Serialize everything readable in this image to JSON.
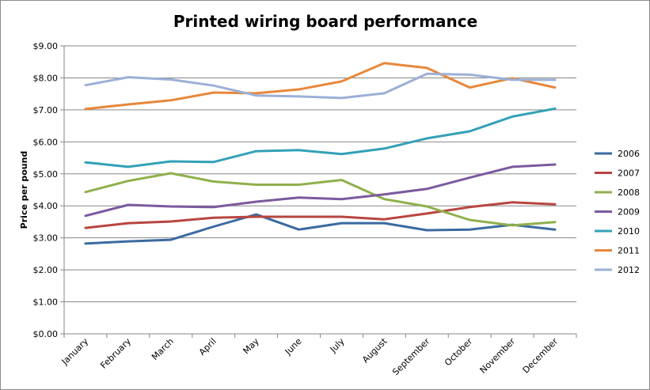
{
  "chart_data": {
    "type": "line",
    "title": "Printed wiring board performance",
    "ylabel": "Price per pound",
    "xlabel": "",
    "categories": [
      "January",
      "February",
      "March",
      "April",
      "May",
      "June",
      "July",
      "August",
      "September",
      "October",
      "November",
      "December"
    ],
    "y_ticks": [
      "$0.00",
      "$1.00",
      "$2.00",
      "$3.00",
      "$4.00",
      "$5.00",
      "$6.00",
      "$7.00",
      "$8.00",
      "$9.00"
    ],
    "ylim": [
      0,
      9
    ],
    "grid": true,
    "legend_position": "right",
    "series": [
      {
        "name": "2006",
        "color": "#3b6aa0",
        "values": [
          2.82,
          2.89,
          2.94,
          3.35,
          3.73,
          3.26,
          3.46,
          3.46,
          3.24,
          3.26,
          3.41,
          3.26
        ]
      },
      {
        "name": "2007",
        "color": "#b84540",
        "values": [
          3.31,
          3.46,
          3.51,
          3.63,
          3.66,
          3.66,
          3.66,
          3.58,
          3.76,
          3.96,
          4.11,
          4.05
        ]
      },
      {
        "name": "2008",
        "color": "#8fb04d",
        "values": [
          4.43,
          4.78,
          5.02,
          4.76,
          4.66,
          4.66,
          4.81,
          4.21,
          3.98,
          3.56,
          3.39,
          3.49
        ]
      },
      {
        "name": "2009",
        "color": "#7b5a9e",
        "values": [
          3.69,
          4.03,
          3.98,
          3.96,
          4.13,
          4.26,
          4.21,
          4.36,
          4.53,
          4.88,
          5.22,
          5.29
        ]
      },
      {
        "name": "2010",
        "color": "#33a1b7",
        "values": [
          5.36,
          5.22,
          5.39,
          5.37,
          5.71,
          5.74,
          5.62,
          5.79,
          6.11,
          6.33,
          6.79,
          7.04
        ]
      },
      {
        "name": "2011",
        "color": "#e7883b",
        "values": [
          7.03,
          7.17,
          7.3,
          7.54,
          7.52,
          7.64,
          7.89,
          8.46,
          8.31,
          7.7,
          7.99,
          7.7
        ]
      },
      {
        "name": "2012",
        "color": "#9cb0d6",
        "values": [
          7.77,
          8.02,
          7.95,
          7.76,
          7.45,
          7.42,
          7.37,
          7.52,
          8.13,
          8.1,
          7.94,
          7.94
        ]
      }
    ]
  }
}
